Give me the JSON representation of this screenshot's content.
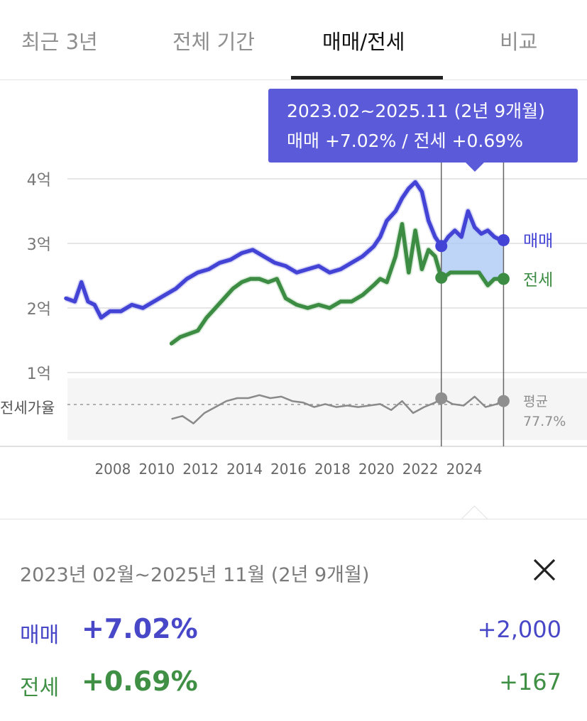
{
  "tabs": [
    {
      "label": "최근 3년",
      "active": false
    },
    {
      "label": "전체 기간",
      "active": false
    },
    {
      "label": "매매/전세",
      "active": true
    },
    {
      "label": "비교",
      "active": false
    }
  ],
  "colors": {
    "sale": "#4343d6",
    "jeonse": "#3d8c44",
    "ratio": "#8a8a8a",
    "tooltip_bg": "#5b5bd9",
    "range_fill": "#a9c7f5"
  },
  "tooltip": {
    "line1": "2023.02~2025.11 (2년 9개월)",
    "line2": "매매 +7.02%  /  전세 +0.69%"
  },
  "chart_data": {
    "type": "line",
    "y_axis_ticks": [
      "4억",
      "3억",
      "2억",
      "1억"
    ],
    "x_axis_ticks": [
      "2008",
      "2010",
      "2012",
      "2014",
      "2016",
      "2018",
      "2020",
      "2022",
      "2024"
    ],
    "ratio_label": "전세가율",
    "ratio_avg_label": "평균",
    "ratio_avg_value": "77.7%",
    "ylim": [
      1.0,
      4.0
    ],
    "selected_range": [
      "2023.02",
      "2025.11"
    ],
    "series": [
      {
        "name": "매매",
        "unit": "억",
        "x": [
          2006.0,
          2006.4,
          2006.7,
          2007.0,
          2007.3,
          2007.6,
          2008.0,
          2008.5,
          2009.0,
          2009.5,
          2010.0,
          2010.5,
          2011.0,
          2011.5,
          2012.0,
          2012.5,
          2013.0,
          2013.5,
          2014.0,
          2014.5,
          2015.0,
          2015.5,
          2016.0,
          2016.5,
          2017.0,
          2017.5,
          2018.0,
          2018.5,
          2019.0,
          2019.5,
          2020.0,
          2020.3,
          2020.6,
          2021.0,
          2021.3,
          2021.6,
          2021.9,
          2022.2,
          2022.5,
          2022.8,
          2023.1,
          2023.4,
          2023.7,
          2024.0,
          2024.3,
          2024.6,
          2024.9,
          2025.2,
          2025.5,
          2025.8
        ],
        "y": [
          2.15,
          2.1,
          2.4,
          2.1,
          2.05,
          1.85,
          1.95,
          1.95,
          2.05,
          2.0,
          2.1,
          2.2,
          2.3,
          2.45,
          2.55,
          2.6,
          2.7,
          2.75,
          2.85,
          2.9,
          2.8,
          2.7,
          2.65,
          2.55,
          2.6,
          2.65,
          2.55,
          2.6,
          2.7,
          2.8,
          2.95,
          3.1,
          3.35,
          3.5,
          3.7,
          3.85,
          3.95,
          3.8,
          3.35,
          3.1,
          2.95,
          3.1,
          3.2,
          3.1,
          3.5,
          3.25,
          3.15,
          3.2,
          3.1,
          3.05
        ]
      },
      {
        "name": "전세",
        "unit": "억",
        "x": [
          2010.8,
          2011.2,
          2011.6,
          2012.0,
          2012.4,
          2012.8,
          2013.2,
          2013.6,
          2014.0,
          2014.4,
          2014.8,
          2015.2,
          2015.6,
          2016.0,
          2016.5,
          2017.0,
          2017.5,
          2018.0,
          2018.5,
          2019.0,
          2019.5,
          2020.0,
          2020.3,
          2020.6,
          2021.0,
          2021.3,
          2021.6,
          2021.9,
          2022.2,
          2022.5,
          2022.8,
          2023.1,
          2023.5,
          2024.0,
          2024.4,
          2024.8,
          2025.2,
          2025.5,
          2025.8
        ],
        "y": [
          1.45,
          1.55,
          1.6,
          1.65,
          1.85,
          2.0,
          2.15,
          2.3,
          2.4,
          2.45,
          2.45,
          2.4,
          2.45,
          2.15,
          2.05,
          2.0,
          2.05,
          2.0,
          2.1,
          2.1,
          2.2,
          2.35,
          2.45,
          2.4,
          2.8,
          3.3,
          2.55,
          3.2,
          2.6,
          2.9,
          2.8,
          2.45,
          2.55,
          2.55,
          2.55,
          2.55,
          2.35,
          2.45,
          2.45
        ]
      },
      {
        "name": "전세가율",
        "unit": "%",
        "x": [
          2010.8,
          2011.3,
          2011.8,
          2012.3,
          2012.8,
          2013.3,
          2013.8,
          2014.3,
          2014.8,
          2015.3,
          2015.8,
          2016.3,
          2016.8,
          2017.3,
          2017.8,
          2018.3,
          2018.8,
          2019.3,
          2019.8,
          2020.3,
          2020.8,
          2021.3,
          2021.8,
          2022.3,
          2022.8,
          2023.1,
          2023.6,
          2024.1,
          2024.6,
          2025.1,
          2025.6,
          2025.8
        ],
        "y": [
          68,
          70,
          65,
          72,
          76,
          80,
          82,
          82,
          84,
          82,
          83,
          80,
          79,
          76,
          78,
          76,
          77,
          76,
          77,
          78,
          74,
          80,
          72,
          76,
          79,
          82,
          78,
          77,
          83,
          76,
          78,
          80
        ]
      }
    ]
  },
  "summary": {
    "period": "2023년 02월~2025년 11월 (2년 9개월)",
    "sale_label": "매매",
    "sale_pct": "+7.02%",
    "sale_amount": "+2,000",
    "jeonse_label": "전세",
    "jeonse_pct": "+0.69%",
    "jeonse_amount": "+167"
  }
}
